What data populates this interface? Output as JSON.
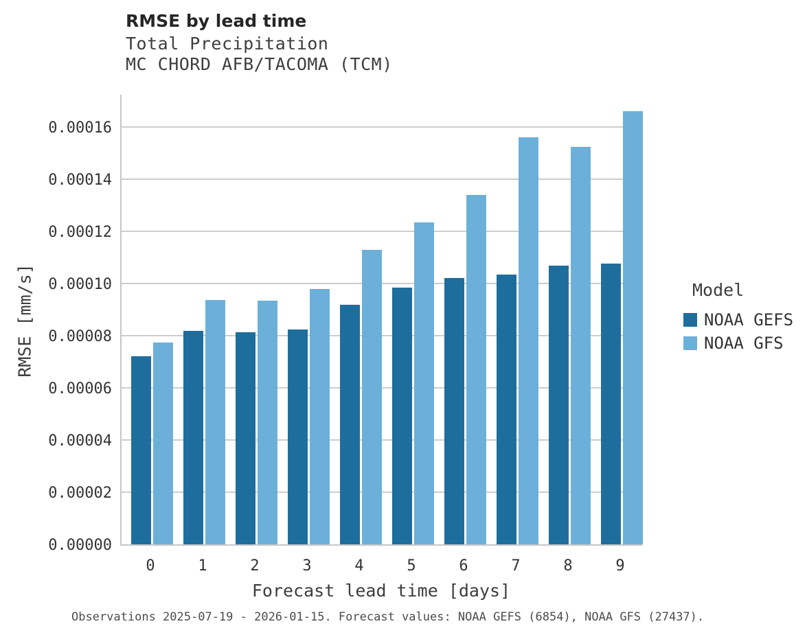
{
  "header": {
    "title": "RMSE by lead time",
    "subtitle_line1": "Total Precipitation",
    "subtitle_line2": "MC CHORD AFB/TACOMA (TCM)"
  },
  "axes": {
    "ylabel": "RMSE [mm/s]",
    "xlabel": "Forecast lead time [days]"
  },
  "legend": {
    "title": "Model"
  },
  "footer": {
    "caption": "Observations 2025-07-19 - 2026-01-15. Forecast values: NOAA GEFS (6854), NOAA GFS (27437)."
  },
  "colors": {
    "gefs_bar": "#1e6e9d",
    "gfs_bar": "#6cb0d9",
    "gridline": "#cdcdcd",
    "axis_line": "#c6c6c6"
  },
  "chart_data": {
    "type": "bar",
    "title": "RMSE by lead time",
    "subtitle": [
      "Total Precipitation",
      "MC CHORD AFB/TACOMA (TCM)"
    ],
    "xlabel": "Forecast lead time [days]",
    "ylabel": "RMSE [mm/s]",
    "categories": [
      "0",
      "1",
      "2",
      "3",
      "4",
      "5",
      "6",
      "7",
      "8",
      "9"
    ],
    "series": [
      {
        "name": "NOAA GEFS",
        "color": "#1e6e9d",
        "values": [
          7.2e-05,
          8.19e-05,
          8.14e-05,
          8.23e-05,
          9.19e-05,
          9.84e-05,
          0.000102,
          0.0001033,
          0.0001067,
          0.0001076
        ]
      },
      {
        "name": "NOAA GFS",
        "color": "#6cb0d9",
        "values": [
          7.74e-05,
          9.36e-05,
          9.33e-05,
          9.78e-05,
          0.0001128,
          0.0001234,
          0.0001338,
          0.000156,
          0.0001523,
          0.000166
        ]
      }
    ],
    "ylim": [
      0,
      0.0001723
    ],
    "yticks": [
      0,
      2e-05,
      4e-05,
      6e-05,
      8e-05,
      0.0001,
      0.00012,
      0.00014,
      0.00016
    ],
    "ytick_labels": [
      "0.00000",
      "0.00002",
      "0.00004",
      "0.00006",
      "0.00008",
      "0.00010",
      "0.00012",
      "0.00014",
      "0.00016"
    ],
    "grid": true,
    "legend_title": "Model",
    "legend_position": "right",
    "caption": "Observations 2025-07-19 - 2026-01-15. Forecast values: NOAA GEFS (6854), NOAA GFS (27437)."
  }
}
